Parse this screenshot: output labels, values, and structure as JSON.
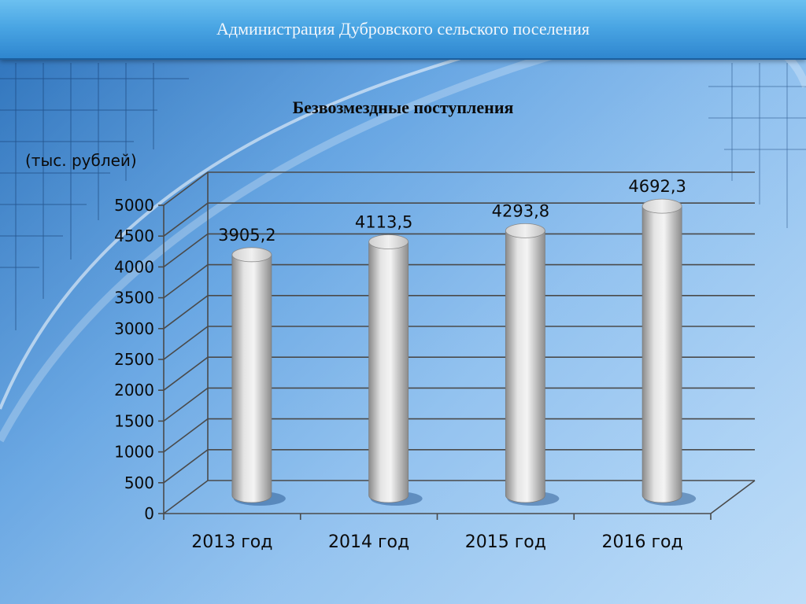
{
  "header": {
    "title": "Администрация Дубровского сельского поселения"
  },
  "chart_data": {
    "type": "bar",
    "title": "Безвозмездные поступления",
    "units_label": "(тыс. рублей)",
    "categories": [
      "2013 год",
      "2014 год",
      "2015 год",
      "2016 год"
    ],
    "values": [
      3905.2,
      4113.5,
      4293.8,
      4692.3
    ],
    "value_labels": [
      "3905,2",
      "4113,5",
      "4293,8",
      "4692,3"
    ],
    "y_ticks": [
      "0",
      "500",
      "1000",
      "1500",
      "2000",
      "2500",
      "3000",
      "3500",
      "4000",
      "4500",
      "5000"
    ],
    "ylim": [
      0,
      5000
    ],
    "grid": true,
    "style": "3d-cylinder",
    "bar_color": "#c8c8c8"
  }
}
